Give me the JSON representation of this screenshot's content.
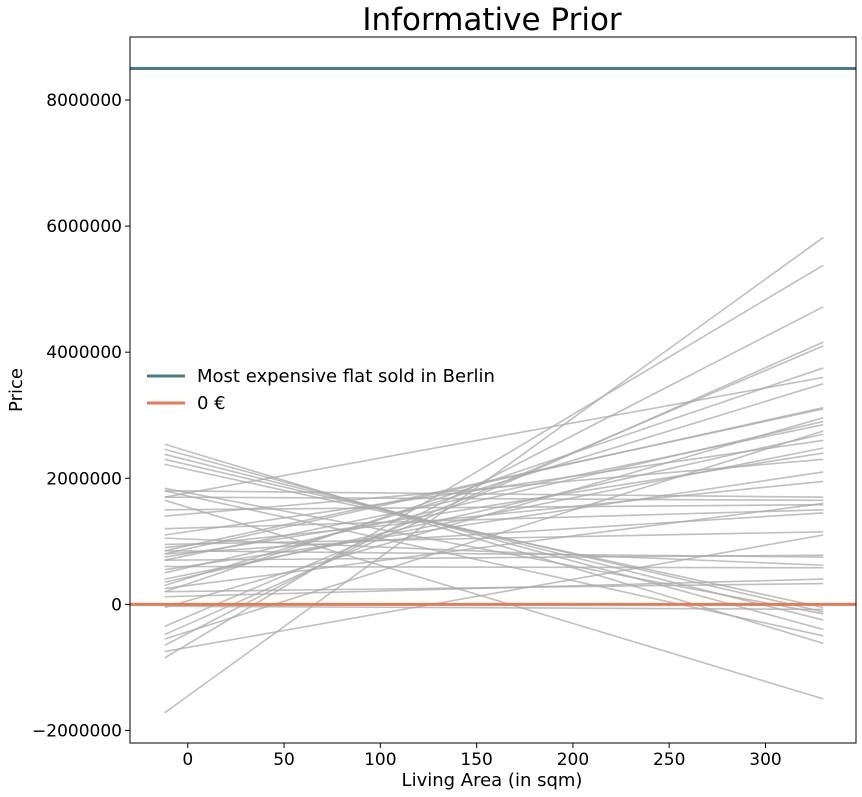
{
  "chart_data": {
    "type": "line",
    "title": "Informative Prior",
    "xlabel": "Living Area (in sqm)",
    "ylabel": "Price",
    "xlim": [
      -30,
      347
    ],
    "ylim": [
      -2200000,
      9000000
    ],
    "x_ticks": [
      0,
      50,
      100,
      150,
      200,
      250,
      300
    ],
    "x_tick_labels": [
      "0",
      "50",
      "100",
      "150",
      "200",
      "250",
      "300"
    ],
    "y_ticks": [
      -2000000,
      0,
      2000000,
      4000000,
      6000000,
      8000000
    ],
    "y_tick_labels": [
      "−2000000",
      "0",
      "2000000",
      "4000000",
      "6000000",
      "8000000"
    ],
    "grid": false,
    "legend_position": "center-left",
    "reference_lines": [
      {
        "name": "Most expensive flat sold in Berlin",
        "y": 8500000,
        "color": "#4a7b8c"
      },
      {
        "name": "0 €",
        "y": 0,
        "color": "#e8785c"
      }
    ],
    "prior_line_color": "#a9a9a9",
    "prior_lines_x": [
      -12,
      330
    ],
    "prior_lines": [
      [
        -1720000,
        5820000
      ],
      [
        -850000,
        5380000
      ],
      [
        -650000,
        4720000
      ],
      [
        -480000,
        4160000
      ],
      [
        -350000,
        4100000
      ],
      [
        200000,
        3750000
      ],
      [
        1700000,
        3600000
      ],
      [
        300000,
        3500000
      ],
      [
        800000,
        3120000
      ],
      [
        850000,
        3100000
      ],
      [
        -50000,
        2960000
      ],
      [
        500000,
        2900000
      ],
      [
        700000,
        2850000
      ],
      [
        -550000,
        2750000
      ],
      [
        350000,
        2700000
      ],
      [
        1100000,
        2600000
      ],
      [
        400000,
        2480000
      ],
      [
        750000,
        2400000
      ],
      [
        1400000,
        2300000
      ],
      [
        550000,
        2100000
      ],
      [
        900000,
        1950000
      ],
      [
        1800000,
        1700000
      ],
      [
        1700000,
        1650000
      ],
      [
        250000,
        1600000
      ],
      [
        1500000,
        1580000
      ],
      [
        1200000,
        1500000
      ],
      [
        800000,
        1450000
      ],
      [
        950000,
        1150000
      ],
      [
        -750000,
        1100000
      ],
      [
        700000,
        780000
      ],
      [
        850000,
        750000
      ],
      [
        1050000,
        620000
      ],
      [
        600000,
        580000
      ],
      [
        120000,
        400000
      ],
      [
        200000,
        330000
      ],
      [
        -30000,
        -80000
      ],
      [
        2220000,
        -50000
      ],
      [
        2300000,
        -120000
      ],
      [
        1840000,
        -150000
      ],
      [
        2380000,
        -250000
      ],
      [
        2460000,
        -400000
      ],
      [
        2540000,
        -620000
      ],
      [
        1800000,
        -500000
      ],
      [
        1650000,
        -1500000
      ]
    ]
  }
}
